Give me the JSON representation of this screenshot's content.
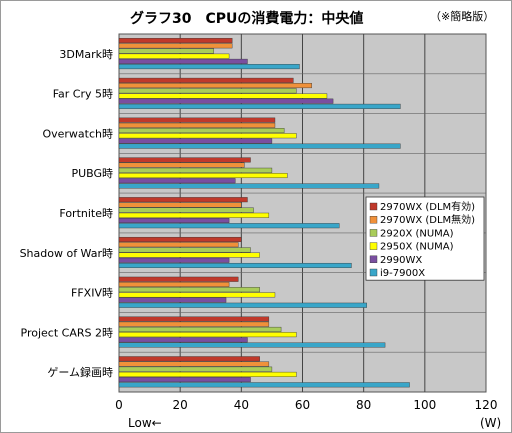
{
  "chart_data": {
    "type": "bar",
    "orientation": "horizontal",
    "title": "グラフ30　CPUの消費電力：中央値",
    "note": "（※簡略版）",
    "categories": [
      "3DMark時",
      "Far Cry 5時",
      "Overwatch時",
      "PUBG時",
      "Fortnite時",
      "Shadow of War時",
      "FFXIV時",
      "Project CARS 2時",
      "ゲーム録画時"
    ],
    "series": [
      {
        "name": "2970WX (DLM有効)",
        "color": "#c0392b",
        "values": [
          37,
          57,
          51,
          43,
          42,
          40,
          39,
          49,
          46
        ]
      },
      {
        "name": "2970WX (DLM無効)",
        "color": "#f0913a",
        "values": [
          37,
          63,
          51,
          41,
          40,
          39,
          36,
          49,
          49
        ]
      },
      {
        "name": "2920X (NUMA)",
        "color": "#a9cc5a",
        "values": [
          31,
          58,
          54,
          50,
          44,
          43,
          46,
          53,
          50
        ]
      },
      {
        "name": "2950X (NUMA)",
        "color": "#ffff00",
        "values": [
          36,
          68,
          58,
          55,
          49,
          46,
          51,
          58,
          58
        ]
      },
      {
        "name": "2990WX",
        "color": "#7a4fa0",
        "values": [
          42,
          70,
          50,
          38,
          36,
          36,
          35,
          42,
          43
        ]
      },
      {
        "name": "i9-7900X",
        "color": "#39a6c9",
        "values": [
          59,
          92,
          92,
          85,
          72,
          76,
          81,
          87,
          95
        ]
      }
    ],
    "xlim": [
      0,
      120
    ],
    "xticks": [
      0,
      20,
      40,
      60,
      80,
      100,
      120
    ],
    "xunit": "(W)",
    "xnote": "Low←",
    "grid": true,
    "legend_position": "right-middle"
  }
}
